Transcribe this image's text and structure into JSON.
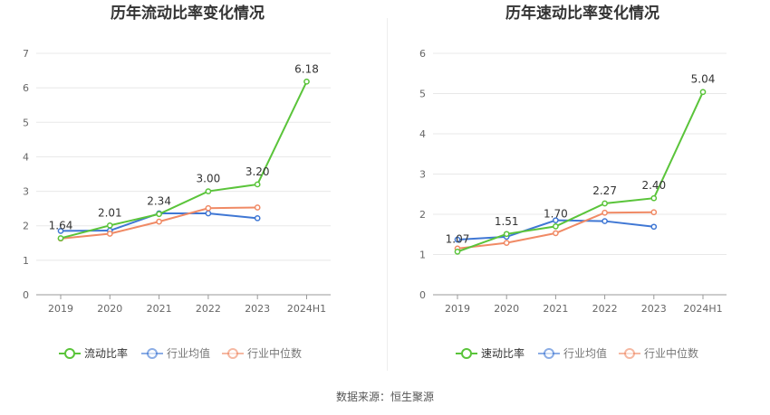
{
  "source_text": "数据来源：恒生聚源",
  "chart_data": [
    {
      "type": "line",
      "title": "历年流动比率变化情况",
      "categories": [
        "2019",
        "2020",
        "2021",
        "2022",
        "2023",
        "2024H1"
      ],
      "ylim": [
        0,
        7
      ],
      "yticks": [
        0,
        1,
        2,
        3,
        4,
        5,
        6,
        7
      ],
      "grid": true,
      "legend_position": "bottom",
      "series": [
        {
          "name": "流动比率",
          "color": "#5ac43a",
          "values": [
            1.64,
            2.01,
            2.34,
            3.0,
            3.2,
            6.18
          ],
          "labels": [
            "1.64",
            "2.01",
            "2.34",
            "3.00",
            "3.20",
            "6.18"
          ]
        },
        {
          "name": "行业均值",
          "color": "#3f77d4",
          "values": [
            1.85,
            1.86,
            2.36,
            2.36,
            2.22,
            null
          ]
        },
        {
          "name": "行业中位数",
          "color": "#f08a65",
          "values": [
            1.63,
            1.77,
            2.12,
            2.51,
            2.53,
            null
          ]
        }
      ]
    },
    {
      "type": "line",
      "title": "历年速动比率变化情况",
      "categories": [
        "2019",
        "2020",
        "2021",
        "2022",
        "2023",
        "2024H1"
      ],
      "ylim": [
        0,
        6
      ],
      "yticks": [
        0,
        1,
        2,
        3,
        4,
        5,
        6
      ],
      "grid": true,
      "legend_position": "bottom",
      "series": [
        {
          "name": "速动比率",
          "color": "#5ac43a",
          "values": [
            1.07,
            1.51,
            1.7,
            2.27,
            2.4,
            5.04
          ],
          "labels": [
            "1.07",
            "1.51",
            "1.70",
            "2.27",
            "2.40",
            "5.04"
          ]
        },
        {
          "name": "行业均值",
          "color": "#3f77d4",
          "values": [
            1.37,
            1.44,
            1.85,
            1.83,
            1.69,
            null
          ]
        },
        {
          "name": "行业中位数",
          "color": "#f08a65",
          "values": [
            1.15,
            1.29,
            1.53,
            2.04,
            2.05,
            null
          ]
        }
      ]
    }
  ]
}
